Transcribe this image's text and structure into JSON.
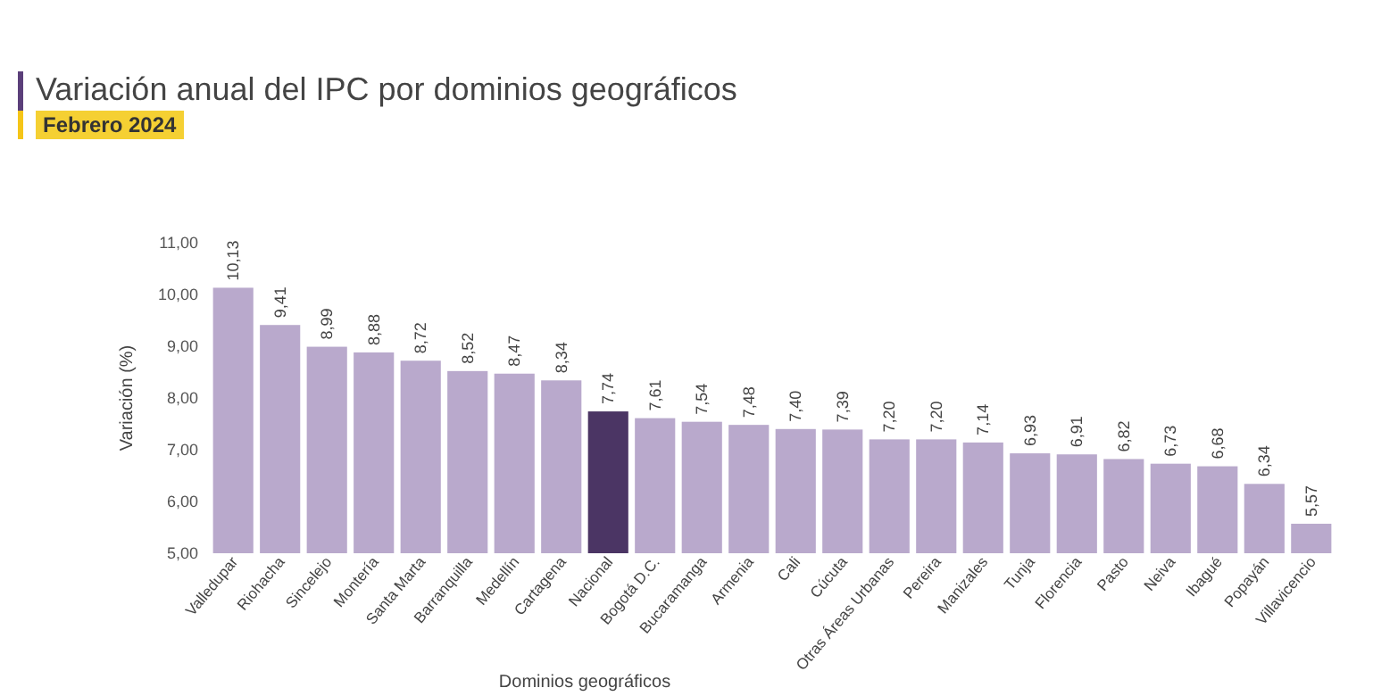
{
  "chart_data": {
    "type": "bar",
    "title": "Variación anual del IPC por dominios geográficos",
    "subtitle": "Febrero 2024",
    "xlabel": "Dominios geográficos",
    "ylabel": "Variación (%)",
    "categories": [
      "Valledupar",
      "Riohacha",
      "Sincelejo",
      "Montería",
      "Santa Marta",
      "Barranquilla",
      "Medellín",
      "Cartagena",
      "Nacional",
      "Bogotá D.C.",
      "Bucaramanga",
      "Armenia",
      "Cali",
      "Cúcuta",
      "Otras Áreas Urbanas",
      "Pereira",
      "Manizales",
      "Tunja",
      "Florencia",
      "Pasto",
      "Neiva",
      "Ibagué",
      "Popayán",
      "Villavicencio"
    ],
    "values": [
      10.13,
      9.41,
      8.99,
      8.88,
      8.72,
      8.52,
      8.47,
      8.34,
      7.74,
      7.61,
      7.54,
      7.48,
      7.4,
      7.39,
      7.2,
      7.2,
      7.14,
      6.93,
      6.91,
      6.82,
      6.73,
      6.68,
      6.34,
      5.57
    ],
    "colors": [
      "#b9a9cc",
      "#b9a9cc",
      "#b9a9cc",
      "#b9a9cc",
      "#b9a9cc",
      "#b9a9cc",
      "#b9a9cc",
      "#b9a9cc",
      "#4b3564",
      "#b9a9cc",
      "#b9a9cc",
      "#b9a9cc",
      "#b9a9cc",
      "#b9a9cc",
      "#b9a9cc",
      "#b9a9cc",
      "#b9a9cc",
      "#b9a9cc",
      "#b9a9cc",
      "#b9a9cc",
      "#b9a9cc",
      "#b9a9cc",
      "#b9a9cc",
      "#b9a9cc"
    ],
    "value_labels": [
      "10,13",
      "9,41",
      "8,99",
      "8,88",
      "8,72",
      "8,52",
      "8,47",
      "8,34",
      "7,74",
      "7,61",
      "7,54",
      "7,48",
      "7,40",
      "7,39",
      "7,20",
      "7,20",
      "7,14",
      "6,93",
      "6,91",
      "6,82",
      "6,73",
      "6,68",
      "6,34",
      "5,57"
    ],
    "ylim": [
      5,
      11
    ],
    "yticks": [
      {
        "value": 5,
        "label": "5,00"
      },
      {
        "value": 6,
        "label": "6,00"
      },
      {
        "value": 7,
        "label": "7,00"
      },
      {
        "value": 8,
        "label": "8,00"
      },
      {
        "value": 9,
        "label": "9,00"
      },
      {
        "value": 10,
        "label": "10,00"
      },
      {
        "value": 11,
        "label": "11,00"
      }
    ],
    "grid": false
  }
}
